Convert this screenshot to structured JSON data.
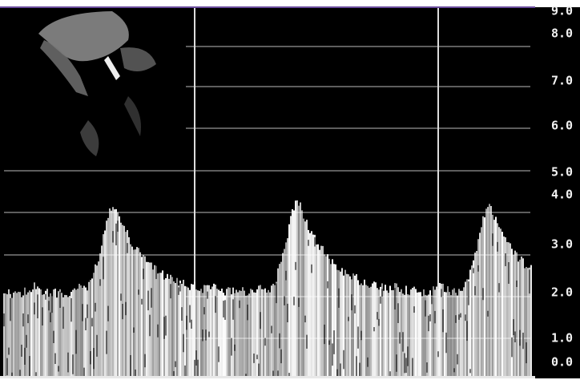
{
  "scale": {
    "labels": [
      "9.0",
      "8.0",
      "7.0",
      "6.0",
      "5.0",
      "4.0",
      "3.0",
      "2.0",
      "1.0",
      "0.0"
    ]
  }
}
